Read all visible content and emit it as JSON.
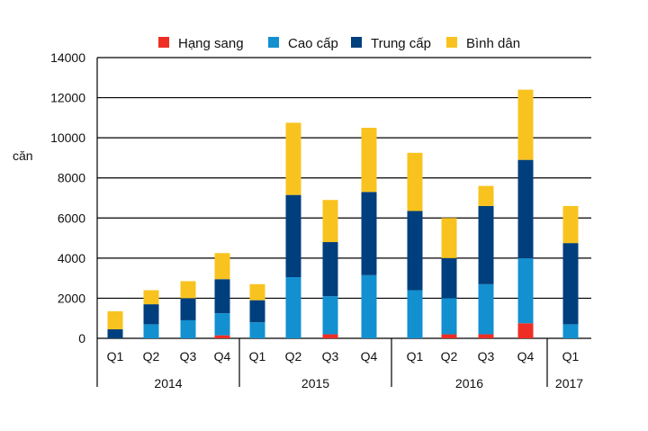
{
  "chart_data": {
    "type": "bar",
    "stacked": true,
    "ylabel": "căn",
    "ylim": [
      0,
      14000
    ],
    "yticks": [
      0,
      2000,
      4000,
      6000,
      8000,
      10000,
      12000,
      14000
    ],
    "grid": true,
    "legend_position": "top",
    "categories": [
      "Q1",
      "Q2",
      "Q3",
      "Q4",
      "Q1",
      "Q2",
      "Q3",
      "Q4",
      "Q1",
      "Q2",
      "Q3",
      "Q4",
      "Q1"
    ],
    "year_groups": [
      {
        "label": "2014",
        "count": 4
      },
      {
        "label": "2015",
        "count": 4
      },
      {
        "label": "2016",
        "count": 4
      },
      {
        "label": "2017",
        "count": 1
      }
    ],
    "series": [
      {
        "name": "Hạng sang",
        "color": "#ee2e24",
        "values": [
          0,
          0,
          0,
          150,
          0,
          0,
          200,
          0,
          0,
          200,
          200,
          750,
          0
        ]
      },
      {
        "name": "Cao cấp",
        "color": "#1390d0",
        "values": [
          0,
          700,
          900,
          1100,
          800,
          3050,
          1900,
          3150,
          2400,
          1800,
          2500,
          3250,
          700
        ]
      },
      {
        "name": "Trung cấp",
        "color": "#003f7d",
        "values": [
          450,
          1000,
          1100,
          1700,
          1100,
          4100,
          2700,
          4150,
          3950,
          2000,
          3900,
          4900,
          4050
        ]
      },
      {
        "name": "Bình dân",
        "color": "#f9c31f",
        "values": [
          900,
          700,
          850,
          1300,
          800,
          3600,
          2100,
          3200,
          2900,
          2000,
          1000,
          3500,
          1850
        ]
      }
    ]
  }
}
